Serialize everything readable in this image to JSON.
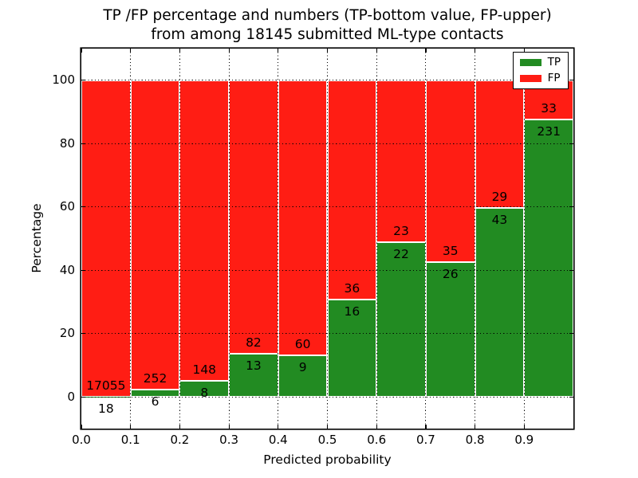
{
  "chart_data": {
    "type": "bar",
    "stacked": true,
    "normalized": "percent",
    "title_line1": "TP /FP percentage and numbers (TP-bottom value, FP-upper)",
    "title_line2": "from among 18145 submitted ML-type contacts",
    "total_contacts": "18145",
    "xlabel": "Predicted probability",
    "ylabel": "Percentage",
    "xlim": [
      0.0,
      1.0
    ],
    "ylim": [
      -10,
      110
    ],
    "x_tick_values": [
      0.0,
      0.1,
      0.2,
      0.3,
      0.4,
      0.5,
      0.6,
      0.7,
      0.8,
      0.9
    ],
    "x_tick_labels": [
      "0.0",
      "0.1",
      "0.2",
      "0.3",
      "0.4",
      "0.5",
      "0.6",
      "0.7",
      "0.8",
      "0.9"
    ],
    "y_tick_values": [
      0,
      20,
      40,
      60,
      80,
      100
    ],
    "y_tick_labels": [
      "0",
      "20",
      "40",
      "60",
      "80",
      "100"
    ],
    "grid": {
      "style": "dotted",
      "color": "#000000",
      "on_top": true
    },
    "legend": {
      "position": "upper-right",
      "entries": [
        {
          "label": "TP",
          "color": "#228b22"
        },
        {
          "label": "FP",
          "color": "#ff1d14"
        }
      ]
    },
    "colors": {
      "tp": "#228b22",
      "fp": "#ff1d14",
      "bar_edge": "#ffffff",
      "text": "#000000",
      "background": "#ffffff"
    },
    "bins": [
      {
        "range": [
          0.0,
          0.1
        ],
        "tp": 18,
        "fp": 17055
      },
      {
        "range": [
          0.1,
          0.2
        ],
        "tp": 6,
        "fp": 252
      },
      {
        "range": [
          0.2,
          0.3
        ],
        "tp": 8,
        "fp": 148
      },
      {
        "range": [
          0.3,
          0.4
        ],
        "tp": 13,
        "fp": 82
      },
      {
        "range": [
          0.4,
          0.5
        ],
        "tp": 9,
        "fp": 60
      },
      {
        "range": [
          0.5,
          0.6
        ],
        "tp": 16,
        "fp": 36
      },
      {
        "range": [
          0.6,
          0.7
        ],
        "tp": 22,
        "fp": 23
      },
      {
        "range": [
          0.7,
          0.8
        ],
        "tp": 26,
        "fp": 35
      },
      {
        "range": [
          0.8,
          0.9
        ],
        "tp": 43,
        "fp": 29
      },
      {
        "range": [
          0.9,
          1.0
        ],
        "tp": 231,
        "fp": 33
      }
    ]
  }
}
